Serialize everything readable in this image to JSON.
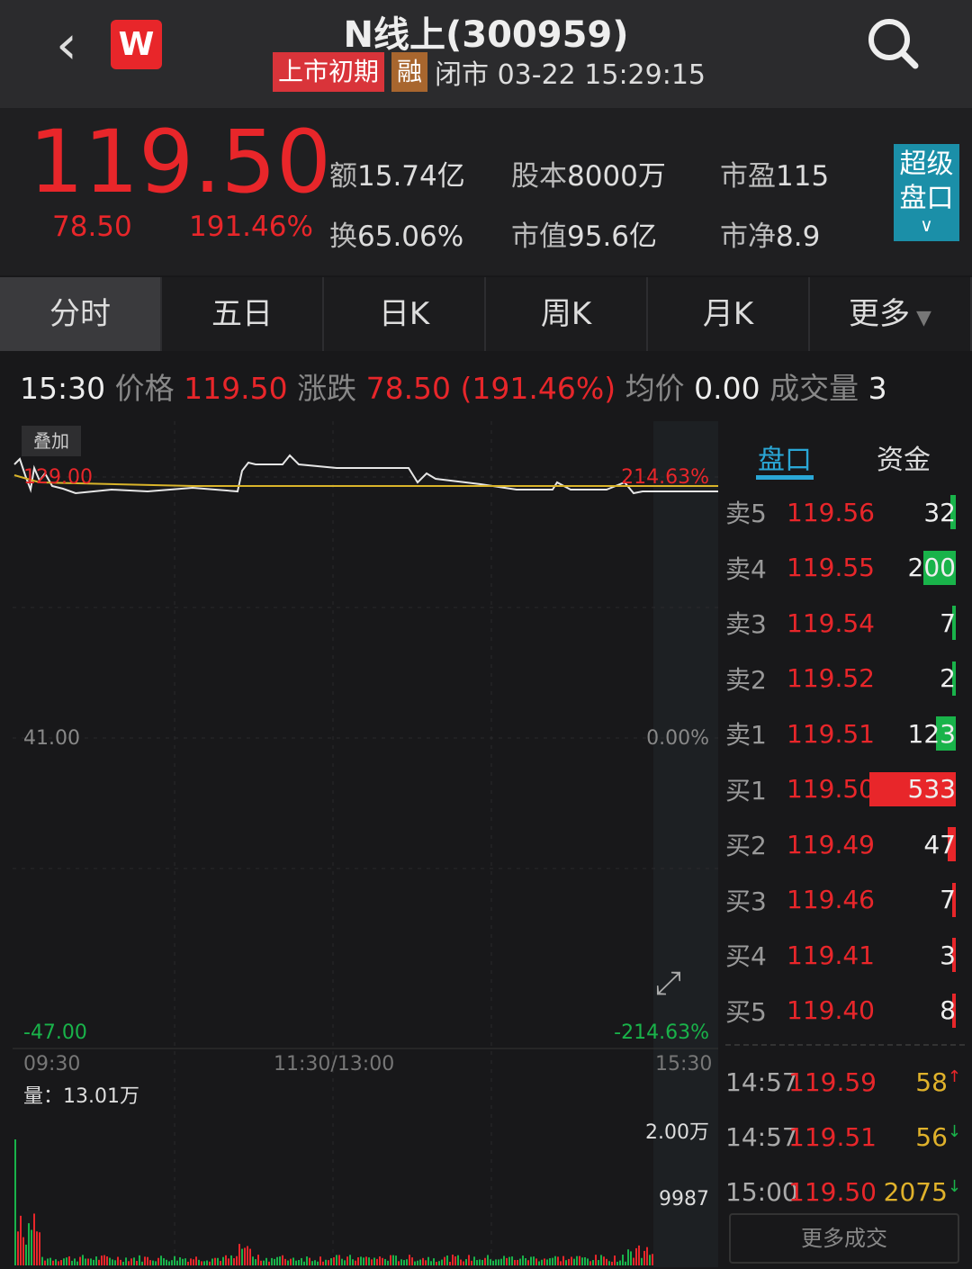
{
  "header": {
    "title": "N线上(300959)",
    "logo": "W",
    "tag_listing": "上市初期",
    "tag_margin": "融",
    "status": "闭市 03-22 15:29:15"
  },
  "quote": {
    "price": "119.50",
    "change": "78.50",
    "change_pct": "191.46%",
    "stats": [
      {
        "label": "额",
        "value": "15.74亿"
      },
      {
        "label": "股本",
        "value": "8000万"
      },
      {
        "label": "市盈",
        "value": "115"
      },
      {
        "label": "换",
        "value": "65.06%"
      },
      {
        "label": "市值",
        "value": "95.6亿"
      },
      {
        "label": "市净",
        "value": "8.9"
      }
    ],
    "super_label_1": "超级",
    "super_label_2": "盘口"
  },
  "tabs": [
    "分时",
    "五日",
    "日K",
    "周K",
    "月K",
    "更多"
  ],
  "info": {
    "time": "15:30",
    "price_label": "价格",
    "price": "119.50",
    "change_label": "涨跌",
    "change": "78.50 (191.46%)",
    "avg_label": "均价",
    "avg": "0.00",
    "vol_label": "成交量",
    "vol": "3"
  },
  "chart": {
    "overlay_button": "叠加",
    "y_top": "129.00",
    "y_mid": "41.00",
    "y_bottom": "-47.00",
    "pct_top": "214.63%",
    "pct_mid": "0.00%",
    "pct_bottom": "-214.63%",
    "x_labels": [
      "09:30",
      "11:30/13:00",
      "15:30"
    ],
    "volume_label": "量：13.01万",
    "vol_tick_1": "2.00万",
    "vol_tick_2": "9987",
    "colors": {
      "price_line": "#e6e6e6",
      "avg_line": "#d9b42a",
      "up": "#e8262a",
      "down": "#19b34a"
    }
  },
  "side": {
    "tabs": [
      "盘口",
      "资金"
    ],
    "asks": [
      {
        "label": "卖5",
        "price": "119.56",
        "vol": "32",
        "bar": 0.06
      },
      {
        "label": "卖4",
        "price": "119.55",
        "vol": "200",
        "bar": 0.38
      },
      {
        "label": "卖3",
        "price": "119.54",
        "vol": "7",
        "bar": 0.02
      },
      {
        "label": "卖2",
        "price": "119.52",
        "vol": "2",
        "bar": 0.02
      },
      {
        "label": "卖1",
        "price": "119.51",
        "vol": "123",
        "bar": 0.23
      }
    ],
    "bids": [
      {
        "label": "买1",
        "price": "119.50",
        "vol": "533",
        "bar": 1.0
      },
      {
        "label": "买2",
        "price": "119.49",
        "vol": "47",
        "bar": 0.09
      },
      {
        "label": "买3",
        "price": "119.46",
        "vol": "7",
        "bar": 0.02
      },
      {
        "label": "买4",
        "price": "119.41",
        "vol": "3",
        "bar": 0.02
      },
      {
        "label": "买5",
        "price": "119.40",
        "vol": "8",
        "bar": 0.02
      }
    ],
    "trades": [
      {
        "time": "14:57",
        "price": "119.59",
        "vol": "58",
        "dir": "up"
      },
      {
        "time": "14:57",
        "price": "119.51",
        "vol": "56",
        "dir": "down"
      },
      {
        "time": "15:00",
        "price": "119.50",
        "vol": "2075",
        "dir": "down"
      }
    ],
    "more_trades": "更多成交"
  }
}
